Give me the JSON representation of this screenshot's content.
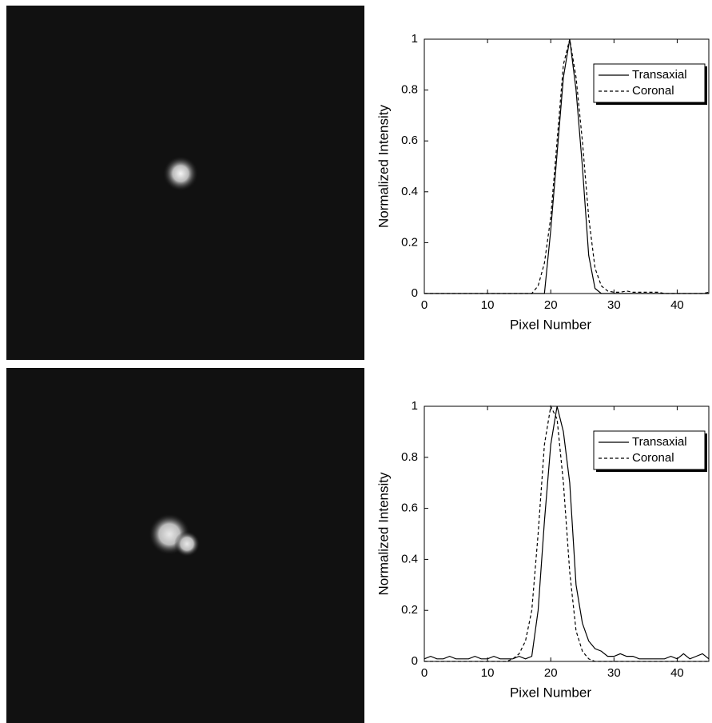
{
  "chart_data": [
    {
      "type": "line",
      "xlabel": "Pixel Number",
      "ylabel": "Normalized Intensity",
      "x": [
        0,
        1,
        2,
        3,
        4,
        5,
        6,
        7,
        8,
        9,
        10,
        11,
        12,
        13,
        14,
        15,
        16,
        17,
        18,
        19,
        20,
        21,
        22,
        23,
        24,
        25,
        26,
        27,
        28,
        29,
        30,
        31,
        32,
        33,
        34,
        35,
        36,
        37,
        38,
        39,
        40,
        41,
        42,
        43,
        44,
        45
      ],
      "series": [
        {
          "name": "Transaxial",
          "color": "#000000",
          "line_style": "solid",
          "values": [
            0,
            0,
            0,
            0,
            0,
            0,
            0,
            0,
            0,
            0,
            0,
            0,
            0,
            0,
            0,
            0,
            0,
            0,
            0,
            0,
            0.25,
            0.55,
            0.85,
            1,
            0.8,
            0.5,
            0.15,
            0.02,
            0,
            0,
            0,
            0,
            0,
            0,
            0,
            0,
            0,
            0,
            0,
            0,
            0,
            0,
            0,
            0,
            0,
            0
          ]
        },
        {
          "name": "Coronal",
          "color": "#000000",
          "line_style": "dashed",
          "values": [
            0,
            0,
            0,
            0,
            0,
            0,
            0,
            0,
            0,
            0,
            0,
            0,
            0,
            0,
            0,
            0,
            0,
            0,
            0.03,
            0.12,
            0.3,
            0.6,
            0.9,
            1,
            0.85,
            0.6,
            0.3,
            0.1,
            0.03,
            0.01,
            0.005,
            0.005,
            0.01,
            0.005,
            0.005,
            0.005,
            0.005,
            0.005,
            0,
            0,
            0,
            0,
            0,
            0,
            0,
            0.005
          ]
        }
      ],
      "xlim": [
        0,
        45
      ],
      "ylim": [
        0,
        1
      ],
      "xticks": [
        0,
        10,
        20,
        30,
        40
      ],
      "yticks": [
        0,
        0.2,
        0.4,
        0.6,
        0.8,
        1
      ],
      "legend": "upper right"
    },
    {
      "type": "line",
      "xlabel": "Pixel Number",
      "ylabel": "Normalized Intensity",
      "x": [
        0,
        1,
        2,
        3,
        4,
        5,
        6,
        7,
        8,
        9,
        10,
        11,
        12,
        13,
        14,
        15,
        16,
        17,
        18,
        19,
        20,
        21,
        22,
        23,
        24,
        25,
        26,
        27,
        28,
        29,
        30,
        31,
        32,
        33,
        34,
        35,
        36,
        37,
        38,
        39,
        40,
        41,
        42,
        43,
        44,
        45
      ],
      "series": [
        {
          "name": "Transaxial",
          "color": "#000000",
          "line_style": "solid",
          "values": [
            0.01,
            0.02,
            0.01,
            0.01,
            0.02,
            0.01,
            0.01,
            0.01,
            0.02,
            0.01,
            0.01,
            0.02,
            0.01,
            0.01,
            0.01,
            0.02,
            0.01,
            0.02,
            0.2,
            0.55,
            0.85,
            1,
            0.9,
            0.7,
            0.3,
            0.15,
            0.08,
            0.05,
            0.04,
            0.02,
            0.02,
            0.03,
            0.02,
            0.02,
            0.01,
            0.01,
            0.01,
            0.01,
            0.01,
            0.02,
            0.01,
            0.03,
            0.01,
            0.02,
            0.03,
            0.01
          ]
        },
        {
          "name": "Coronal",
          "color": "#000000",
          "line_style": "dashed",
          "values": [
            0,
            0,
            0,
            0,
            0,
            0,
            0,
            0,
            0,
            0,
            0,
            0,
            0,
            0,
            0.01,
            0.03,
            0.08,
            0.2,
            0.5,
            0.85,
            1,
            0.95,
            0.7,
            0.35,
            0.12,
            0.04,
            0.01,
            0,
            0,
            0,
            0,
            0,
            0,
            0,
            0,
            0,
            0,
            0,
            0,
            0,
            0,
            0,
            0,
            0,
            0,
            0
          ]
        }
      ],
      "xlim": [
        0,
        45
      ],
      "ylim": [
        0,
        1
      ],
      "xticks": [
        0,
        10,
        20,
        30,
        40
      ],
      "yticks": [
        0,
        0.2,
        0.4,
        0.6,
        0.8,
        1
      ],
      "legend": "upper right"
    }
  ]
}
